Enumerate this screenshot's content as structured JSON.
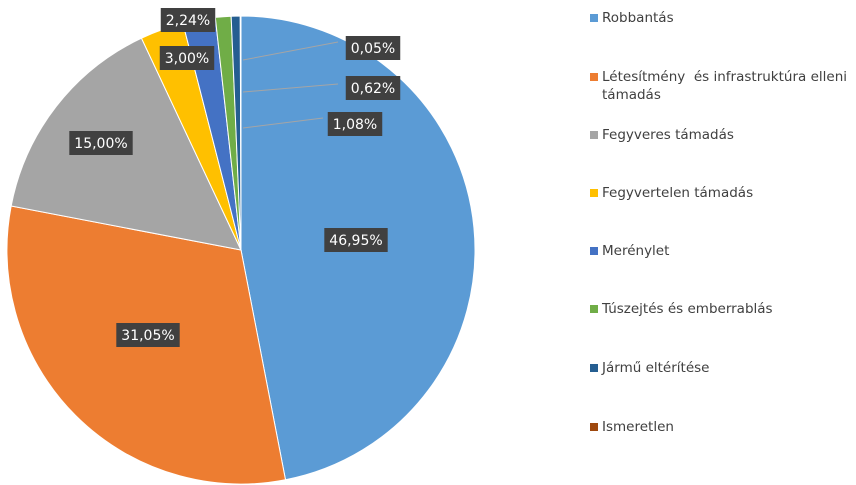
{
  "chart_data": {
    "type": "pie",
    "categories": [
      "Robbantás",
      "Létesítmény  és infrastruktúra elleni támadás",
      "Fegyveres támadás",
      "Fegyvertelen támadás",
      "Merénylet",
      "Túszejtés és emberrablás",
      "Jármű eltérítése",
      "Ismeretlen"
    ],
    "values": [
      46.95,
      31.05,
      15.0,
      3.0,
      2.24,
      1.08,
      0.62,
      0.05
    ],
    "value_labels": [
      "46,95%",
      "31,05%",
      "15,00%",
      "3,00%",
      "2,24%",
      "1,08%",
      "0,62%",
      "0,05%"
    ],
    "colors": [
      "#5b9bd5",
      "#ed7d31",
      "#a5a5a5",
      "#ffc000",
      "#4472c4",
      "#70ad47",
      "#255e91",
      "#9e480e"
    ],
    "legend": "right"
  }
}
